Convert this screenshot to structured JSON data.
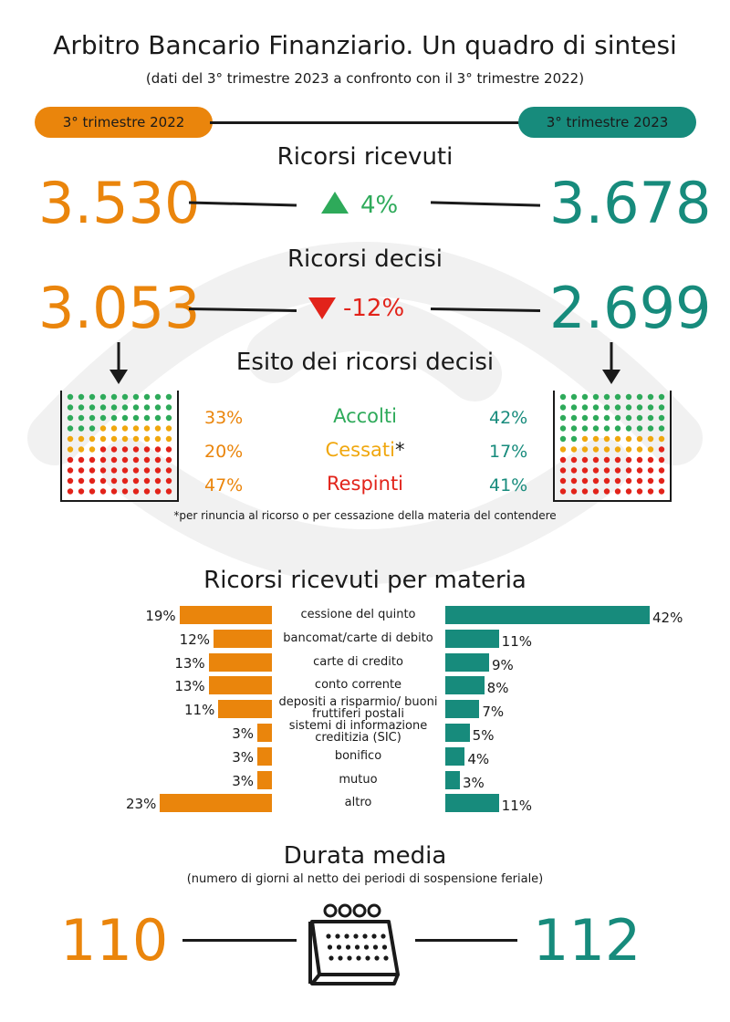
{
  "header": {
    "title": "Arbitro Bancario Finanziario. Un quadro di sintesi",
    "subtitle": "(dati del 3° trimestre 2023 a confronto con il 3° trimestre  2022)"
  },
  "periods": {
    "left": "3° trimestre 2022",
    "right": "3° trimestre 2023"
  },
  "ricevuti": {
    "title": "Ricorsi ricevuti",
    "left": "3.530",
    "right": "3.678",
    "change": "4%",
    "direction": "up"
  },
  "decisi": {
    "title": "Ricorsi decisi",
    "left": "3.053",
    "right": "2.699",
    "change": "-12%",
    "direction": "down"
  },
  "esito": {
    "title": "Esito dei ricorsi decisi",
    "rows": [
      {
        "label": "Accolti",
        "left": "33%",
        "right": "42%",
        "color": "#2eaa5a"
      },
      {
        "label": "Cessati",
        "left": "20%",
        "right": "17%",
        "color": "#f0a70e"
      },
      {
        "label": "Respinti",
        "left": "47%",
        "right": "41%",
        "color": "#e2231a"
      }
    ],
    "asterisk": "*",
    "footnote": "*per rinuncia al ricorso o per cessazione della materia del contendere"
  },
  "materia": {
    "title": "Ricorsi ricevuti per materia"
  },
  "durata": {
    "title": "Durata media",
    "subtitle": "(numero di giorni al netto dei  periodi di sospensione feriale)",
    "left": "110",
    "right": "112"
  },
  "colors": {
    "orange": "#ea850c",
    "teal": "#178b7c",
    "green": "#2eaa5a",
    "yellow": "#f0a70e",
    "red": "#e2231a"
  },
  "icons": [
    "arrow-down-icon",
    "triangle-up-icon",
    "triangle-down-icon",
    "calendar-icon"
  ],
  "chart_data": [
    {
      "type": "bar",
      "orientation": "horizontal",
      "title": "Ricorsi ricevuti per materia",
      "categories": [
        "cessione del quinto",
        "bancomat/carte di debito",
        "carte di credito",
        "conto corrente",
        "depositi a risparmio/ buoni fruttiferi postali",
        "sistemi di informazione creditizia (SIC)",
        "bonifico",
        "mutuo",
        "altro"
      ],
      "series": [
        {
          "name": "3° trimestre 2022",
          "values": [
            19,
            12,
            13,
            13,
            11,
            3,
            3,
            3,
            23
          ],
          "labels": [
            "19%",
            "12%",
            "13%",
            "13%",
            "11%",
            "3%",
            "3%",
            "3%",
            "23%"
          ],
          "color": "#ea850c"
        },
        {
          "name": "3° trimestre 2023",
          "values": [
            42,
            11,
            9,
            8,
            7,
            5,
            4,
            3,
            11
          ],
          "labels": [
            "42%",
            "11%",
            "9%",
            "8%",
            "7%",
            "5%",
            "4%",
            "3%",
            "11%"
          ],
          "color": "#178b7c"
        }
      ],
      "xlim": [
        0,
        42
      ]
    },
    {
      "type": "dot-matrix",
      "title": "Esito dei ricorsi decisi",
      "categories": [
        "Accolti",
        "Cessati",
        "Respinti"
      ],
      "series": [
        {
          "name": "3° trimestre 2022",
          "values": [
            33,
            20,
            47
          ]
        },
        {
          "name": "3° trimestre 2023",
          "values": [
            42,
            17,
            41
          ]
        }
      ]
    }
  ]
}
